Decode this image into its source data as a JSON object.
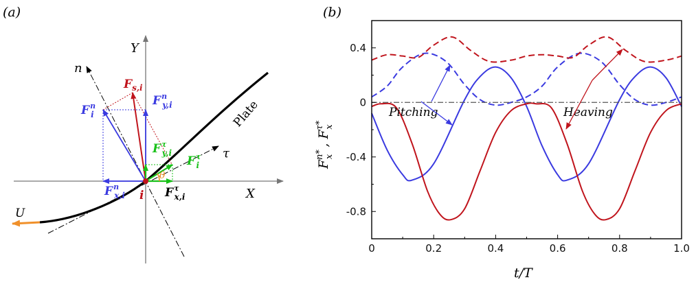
{
  "panel_a": {
    "panel_label": "(a)",
    "axis_x": "X",
    "axis_y": "Y",
    "normal": "n",
    "tangent": "τ",
    "plate": "Plate",
    "velocity": "U",
    "node": "i",
    "angle": "θ",
    "force_s": {
      "sym": "F",
      "sub": "s,i",
      "sup": ""
    },
    "force_n": {
      "sym": "F",
      "sub": "i",
      "sup": "n"
    },
    "force_ny": {
      "sym": "F",
      "sub": "y,i",
      "sup": "n"
    },
    "force_nx": {
      "sym": "F",
      "sub": "x,i",
      "sup": "n"
    },
    "force_t": {
      "sym": "F",
      "sub": "i",
      "sup": "τ"
    },
    "force_ty": {
      "sym": "F",
      "sub": "y,i",
      "sup": "τ"
    },
    "force_tx": {
      "sym": "F",
      "sub": "x,i",
      "sup": "τ"
    },
    "colors": {
      "red": "#c0141c",
      "blue": "#3a3ae0",
      "green": "#18c018",
      "orange": "#f0902a",
      "black": "#000000"
    }
  },
  "chart_data": {
    "type": "line",
    "panel_label": "(b)",
    "xlabel": "t/T",
    "ylabel": "F_x^{n*}, F_x^{τ*}",
    "xlim": [
      0,
      1
    ],
    "ylim": [
      -1.0,
      0.6
    ],
    "xticks": [
      "0",
      "0.2",
      "0.4",
      "0.6",
      "0.8",
      "1.0"
    ],
    "yticks": [
      "0.4",
      "0",
      "-0.4",
      "-0.8"
    ],
    "annotations": [
      "Pitching",
      "Heaving"
    ],
    "series": [
      {
        "style": "solid",
        "color": "#3a3ae0",
        "x": [
          0,
          0.05,
          0.1,
          0.13,
          0.2,
          0.3,
          0.35,
          0.4,
          0.45,
          0.5,
          0.55,
          0.6,
          0.63,
          0.7,
          0.8,
          0.85,
          0.9,
          0.95,
          1.0
        ],
        "y": [
          -0.08,
          -0.35,
          -0.53,
          -0.57,
          -0.45,
          0.02,
          0.19,
          0.26,
          0.18,
          -0.03,
          -0.32,
          -0.53,
          -0.57,
          -0.45,
          0.02,
          0.19,
          0.26,
          0.18,
          -0.03
        ]
      },
      {
        "style": "solid",
        "color": "#c0141c",
        "x": [
          0,
          0.03,
          0.08,
          0.13,
          0.18,
          0.22,
          0.255,
          0.3,
          0.35,
          0.4,
          0.45,
          0.5,
          0.53,
          0.58,
          0.63,
          0.68,
          0.72,
          0.755,
          0.8,
          0.85,
          0.9,
          0.95,
          1.0
        ],
        "y": [
          -0.03,
          -0.01,
          -0.04,
          -0.3,
          -0.65,
          -0.82,
          -0.86,
          -0.78,
          -0.5,
          -0.22,
          -0.06,
          -0.01,
          -0.01,
          -0.04,
          -0.3,
          -0.65,
          -0.82,
          -0.86,
          -0.78,
          -0.5,
          -0.22,
          -0.06,
          -0.01
        ]
      },
      {
        "style": "dashed",
        "color": "#3a3ae0",
        "x": [
          0,
          0.05,
          0.1,
          0.17,
          0.24,
          0.3,
          0.35,
          0.4,
          0.45,
          0.5,
          0.55,
          0.6,
          0.67,
          0.74,
          0.8,
          0.85,
          0.9,
          0.95,
          1.0
        ],
        "y": [
          0.04,
          0.12,
          0.26,
          0.36,
          0.3,
          0.13,
          0.02,
          -0.02,
          0.0,
          0.04,
          0.12,
          0.26,
          0.36,
          0.3,
          0.13,
          0.02,
          -0.02,
          0.0,
          0.04
        ]
      },
      {
        "style": "dashed",
        "color": "#c0141c",
        "x": [
          0,
          0.05,
          0.1,
          0.15,
          0.2,
          0.26,
          0.32,
          0.38,
          0.45,
          0.5,
          0.55,
          0.6,
          0.65,
          0.7,
          0.76,
          0.82,
          0.88,
          0.95,
          1.0
        ],
        "y": [
          0.31,
          0.35,
          0.34,
          0.33,
          0.42,
          0.48,
          0.38,
          0.3,
          0.31,
          0.34,
          0.35,
          0.34,
          0.33,
          0.42,
          0.48,
          0.38,
          0.3,
          0.31,
          0.34
        ]
      },
      {
        "style": "dashdot",
        "color": "#555555",
        "x": [
          0,
          1
        ],
        "y": [
          0,
          0
        ]
      }
    ]
  }
}
